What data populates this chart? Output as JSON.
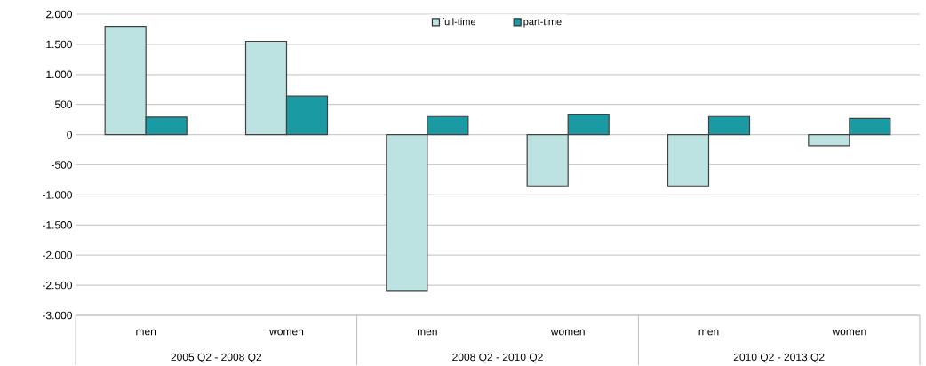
{
  "chart_data": {
    "type": "bar",
    "categories": [
      "men",
      "women",
      "men",
      "women",
      "men",
      "women"
    ],
    "series": [
      {
        "name": "full-time",
        "color": "#bce3e2",
        "values": [
          1800,
          1550,
          -2600,
          -850,
          -850,
          -180
        ]
      },
      {
        "name": "part-time",
        "color": "#1a9aa3",
        "values": [
          290,
          640,
          300,
          340,
          300,
          270
        ]
      }
    ],
    "ylim": [
      -3000,
      2000
    ],
    "yticks": [
      {
        "value": -3000,
        "label": "-3.000"
      },
      {
        "value": -2500,
        "label": "-2.500"
      },
      {
        "value": -2000,
        "label": "-2.000"
      },
      {
        "value": -1500,
        "label": "-1.500"
      },
      {
        "value": -1000,
        "label": "-1.000"
      },
      {
        "value": -500,
        "label": "-500"
      },
      {
        "value": 0,
        "label": "0"
      },
      {
        "value": 500,
        "label": "500"
      },
      {
        "value": 1000,
        "label": "1.000"
      },
      {
        "value": 1500,
        "label": "1.500"
      },
      {
        "value": 2000,
        "label": "2.000"
      }
    ],
    "annotations": [
      "2005 Q2 - 2008 Q2",
      "2008 Q2 - 2010 Q2",
      "2010 Q2 - 2013 Q2"
    ],
    "grid": "y",
    "legend": "top"
  }
}
